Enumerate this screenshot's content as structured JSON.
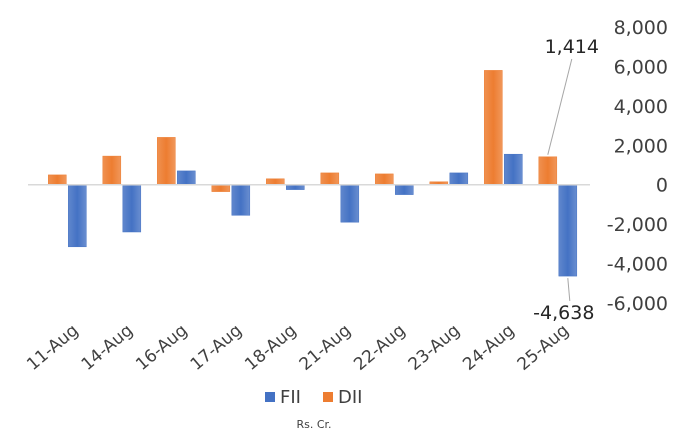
{
  "chart_data": {
    "type": "bar",
    "categories": [
      "11-Aug",
      "14-Aug",
      "16-Aug",
      "17-Aug",
      "18-Aug",
      "21-Aug",
      "22-Aug",
      "23-Aug",
      "24-Aug",
      "25-Aug"
    ],
    "series": [
      {
        "name": "FII",
        "color": "#4472C4",
        "values": [
          -3150,
          -2400,
          700,
          -1550,
          -250,
          -1900,
          -500,
          600,
          1550,
          -4638
        ]
      },
      {
        "name": "DII",
        "color": "#ED7D31",
        "values": [
          500,
          1450,
          2400,
          -350,
          300,
          600,
          550,
          150,
          5800,
          1414
        ]
      }
    ],
    "ylim": [
      -6000,
      8000
    ],
    "yticks": [
      8000,
      6000,
      4000,
      2000,
      0,
      -2000,
      -4000,
      -6000
    ],
    "ytick_labels": [
      "8,000",
      "6,000",
      "4,000",
      "2,000",
      "0",
      "-2,000",
      "-4,000",
      "-6,000"
    ],
    "data_labels": [
      {
        "series": "DII",
        "category": "25-Aug",
        "text": "1,414"
      },
      {
        "series": "FII",
        "category": "25-Aug",
        "text": "-4,638"
      }
    ],
    "xlabel": "Rs. Cr.",
    "legend": "bottom",
    "grid": false
  }
}
